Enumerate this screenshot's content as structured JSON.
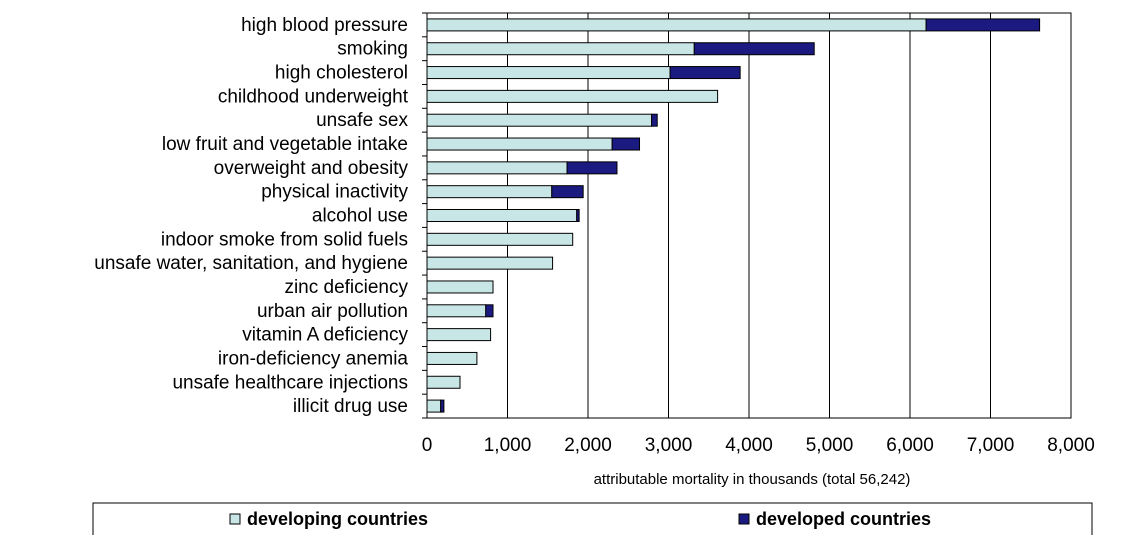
{
  "chart_data": {
    "type": "bar",
    "orientation": "horizontal",
    "stacked": true,
    "categories": [
      "high blood pressure",
      "smoking",
      "high cholesterol",
      "childhood underweight",
      "unsafe sex",
      "low fruit and vegetable intake",
      "overweight and obesity",
      "physical inactivity",
      "alcohol use",
      "indoor smoke from solid fuels",
      "unsafe water, sanitation, and hygiene",
      "zinc deficiency",
      "urban air pollution",
      "vitamin A deficiency",
      "iron-deficiency anemia",
      "unsafe healthcare injections",
      "illicit drug use"
    ],
    "series": [
      {
        "name": "developing countries",
        "color": "#c9e6e6",
        "values": [
          6200,
          3320,
          3020,
          3610,
          2790,
          2300,
          1740,
          1550,
          1860,
          1810,
          1560,
          820,
          730,
          790,
          620,
          410,
          170
        ]
      },
      {
        "name": "developed countries",
        "color": "#1a1a80",
        "values": [
          1410,
          1490,
          870,
          0,
          70,
          340,
          620,
          390,
          30,
          0,
          0,
          0,
          90,
          0,
          0,
          0,
          40
        ]
      }
    ],
    "xlabel": "attributable mortality in thousands (total 56,242)",
    "xlim": [
      0,
      8000
    ],
    "xticks": [
      0,
      1000,
      2000,
      3000,
      4000,
      5000,
      6000,
      7000,
      8000
    ],
    "xtick_labels": [
      "0",
      "1,000",
      "2,000",
      "3,000",
      "4,000",
      "5,000",
      "6,000",
      "7,000",
      "8,000"
    ],
    "grid": "vertical",
    "legend_position": "bottom"
  }
}
